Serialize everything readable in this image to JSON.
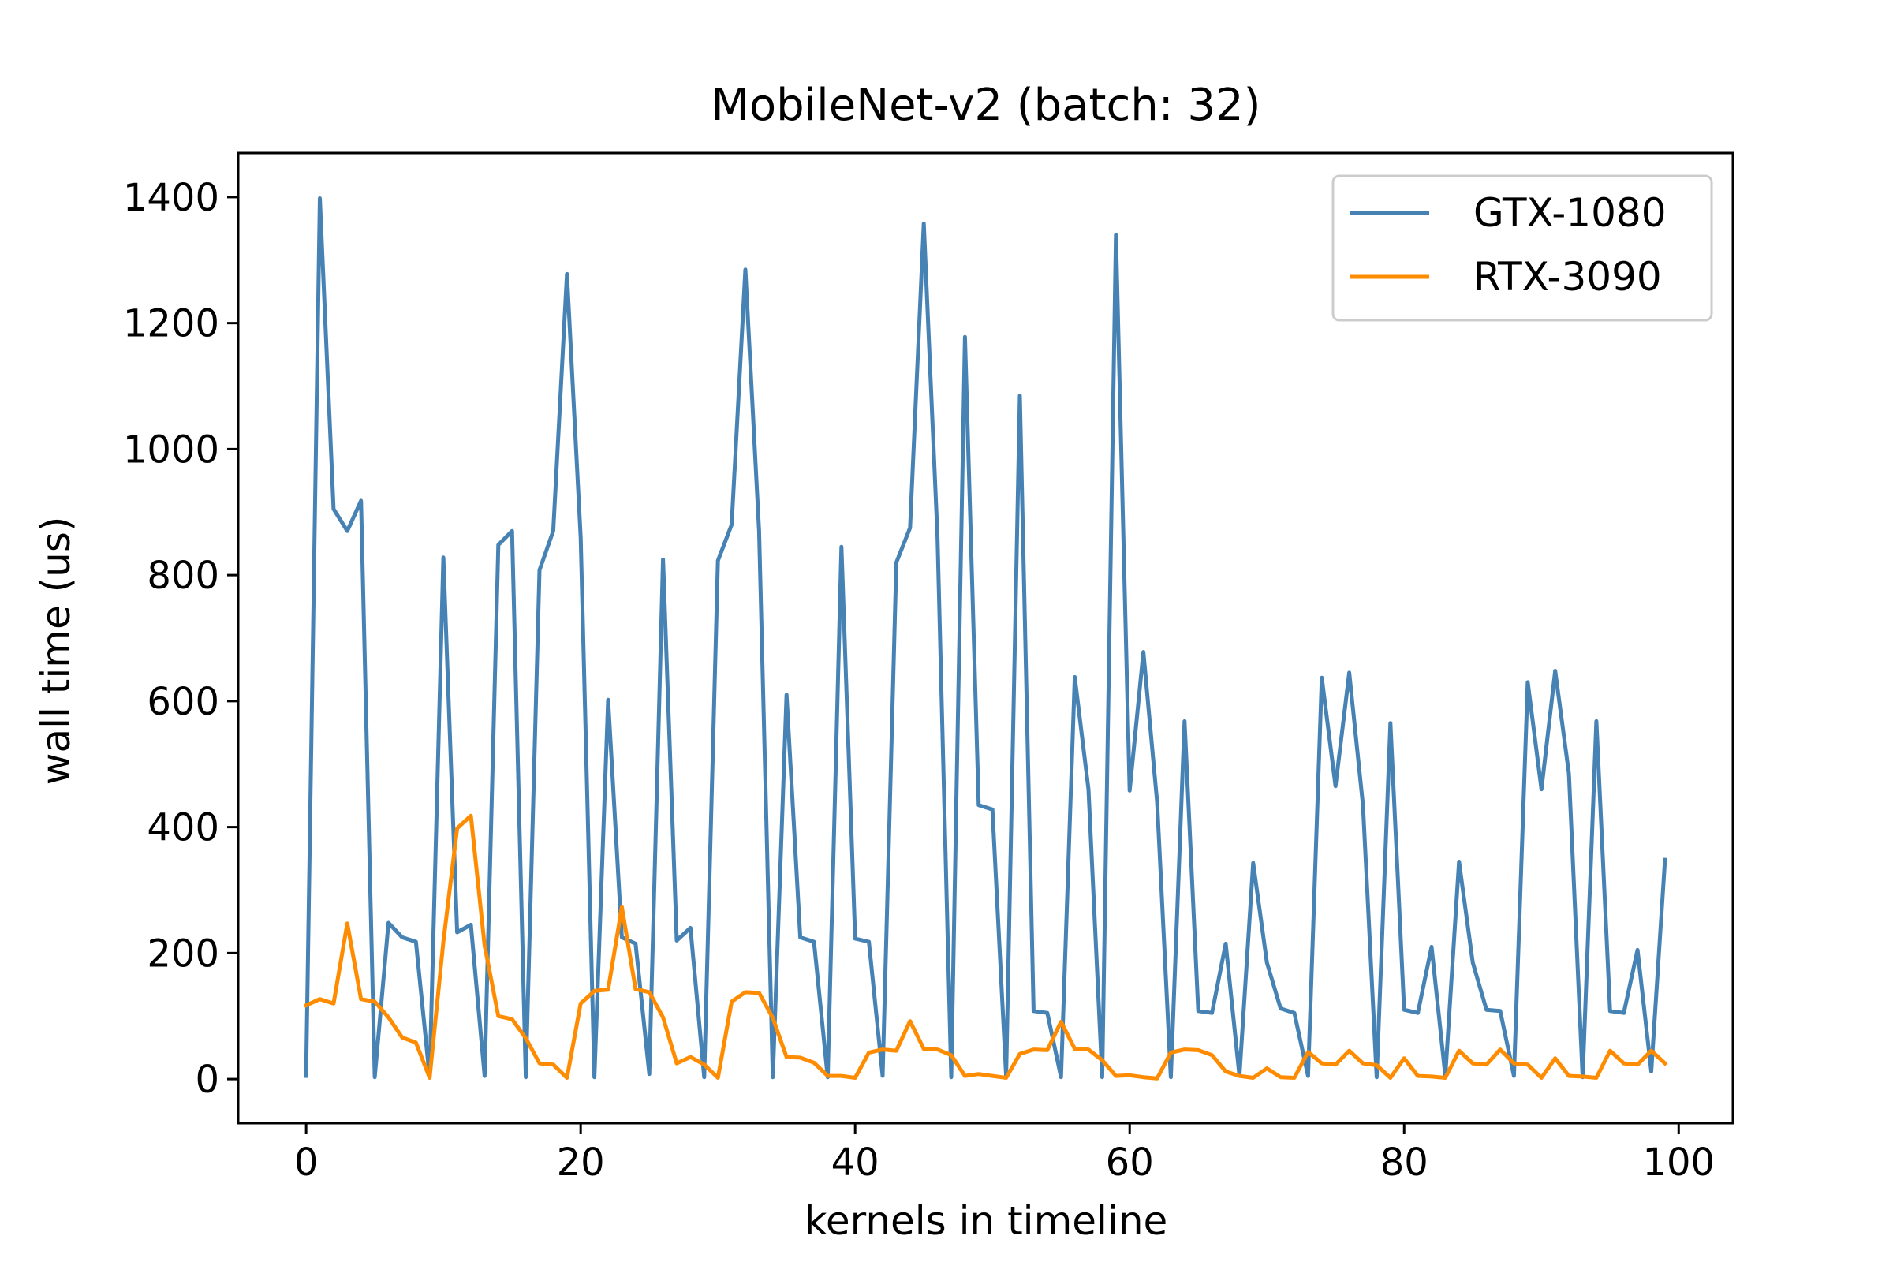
{
  "chart_data": {
    "type": "line",
    "title": "MobileNet-v2 (batch: 32)",
    "xlabel": "kernels in timeline",
    "ylabel": "wall time (us)",
    "xlim": [
      -4.95,
      103.95
    ],
    "ylim": [
      -70,
      1470
    ],
    "xticks": [
      0,
      20,
      40,
      60,
      80,
      100
    ],
    "yticks": [
      0,
      200,
      400,
      600,
      800,
      1000,
      1200,
      1400
    ],
    "grid": false,
    "legend_position": "top-right",
    "series": [
      {
        "name": "GTX-1080",
        "color": "#4682b4",
        "values": [
          5,
          1398,
          905,
          870,
          918,
          3,
          248,
          225,
          218,
          3,
          828,
          233,
          245,
          5,
          848,
          870,
          3,
          808,
          870,
          1278,
          860,
          3,
          602,
          225,
          215,
          8,
          825,
          220,
          240,
          3,
          823,
          880,
          1285,
          870,
          3,
          610,
          225,
          218,
          3,
          845,
          223,
          218,
          5,
          820,
          875,
          1358,
          860,
          3,
          1178,
          435,
          428,
          5,
          1085,
          108,
          105,
          3,
          638,
          460,
          3,
          1340,
          458,
          678,
          440,
          3,
          568,
          108,
          105,
          215,
          5,
          343,
          185,
          112,
          105,
          5,
          637,
          465,
          645,
          435,
          3,
          565,
          110,
          105,
          210,
          5,
          345,
          185,
          110,
          108,
          5,
          630,
          460,
          648,
          485,
          3,
          568,
          108,
          105,
          205,
          12,
          348
        ]
      },
      {
        "name": "RTX-3090",
        "color": "#ff8c00",
        "values": [
          117,
          127,
          120,
          247,
          127,
          123,
          98,
          66,
          58,
          2,
          218,
          398,
          418,
          212,
          100,
          95,
          65,
          25,
          23,
          2,
          120,
          140,
          142,
          273,
          143,
          138,
          98,
          25,
          35,
          23,
          2,
          123,
          138,
          137,
          97,
          35,
          34,
          26,
          5,
          5,
          2,
          42,
          47,
          45,
          92,
          48,
          47,
          38,
          5,
          8,
          5,
          2,
          40,
          47,
          46,
          91,
          48,
          47,
          30,
          5,
          6,
          3,
          1,
          42,
          47,
          46,
          38,
          12,
          5,
          2,
          17,
          3,
          2,
          43,
          25,
          23,
          45,
          25,
          22,
          2,
          33,
          5,
          4,
          2,
          45,
          25,
          23,
          47,
          25,
          23,
          2,
          33,
          5,
          4,
          2,
          45,
          25,
          23,
          45,
          25
        ]
      }
    ]
  }
}
